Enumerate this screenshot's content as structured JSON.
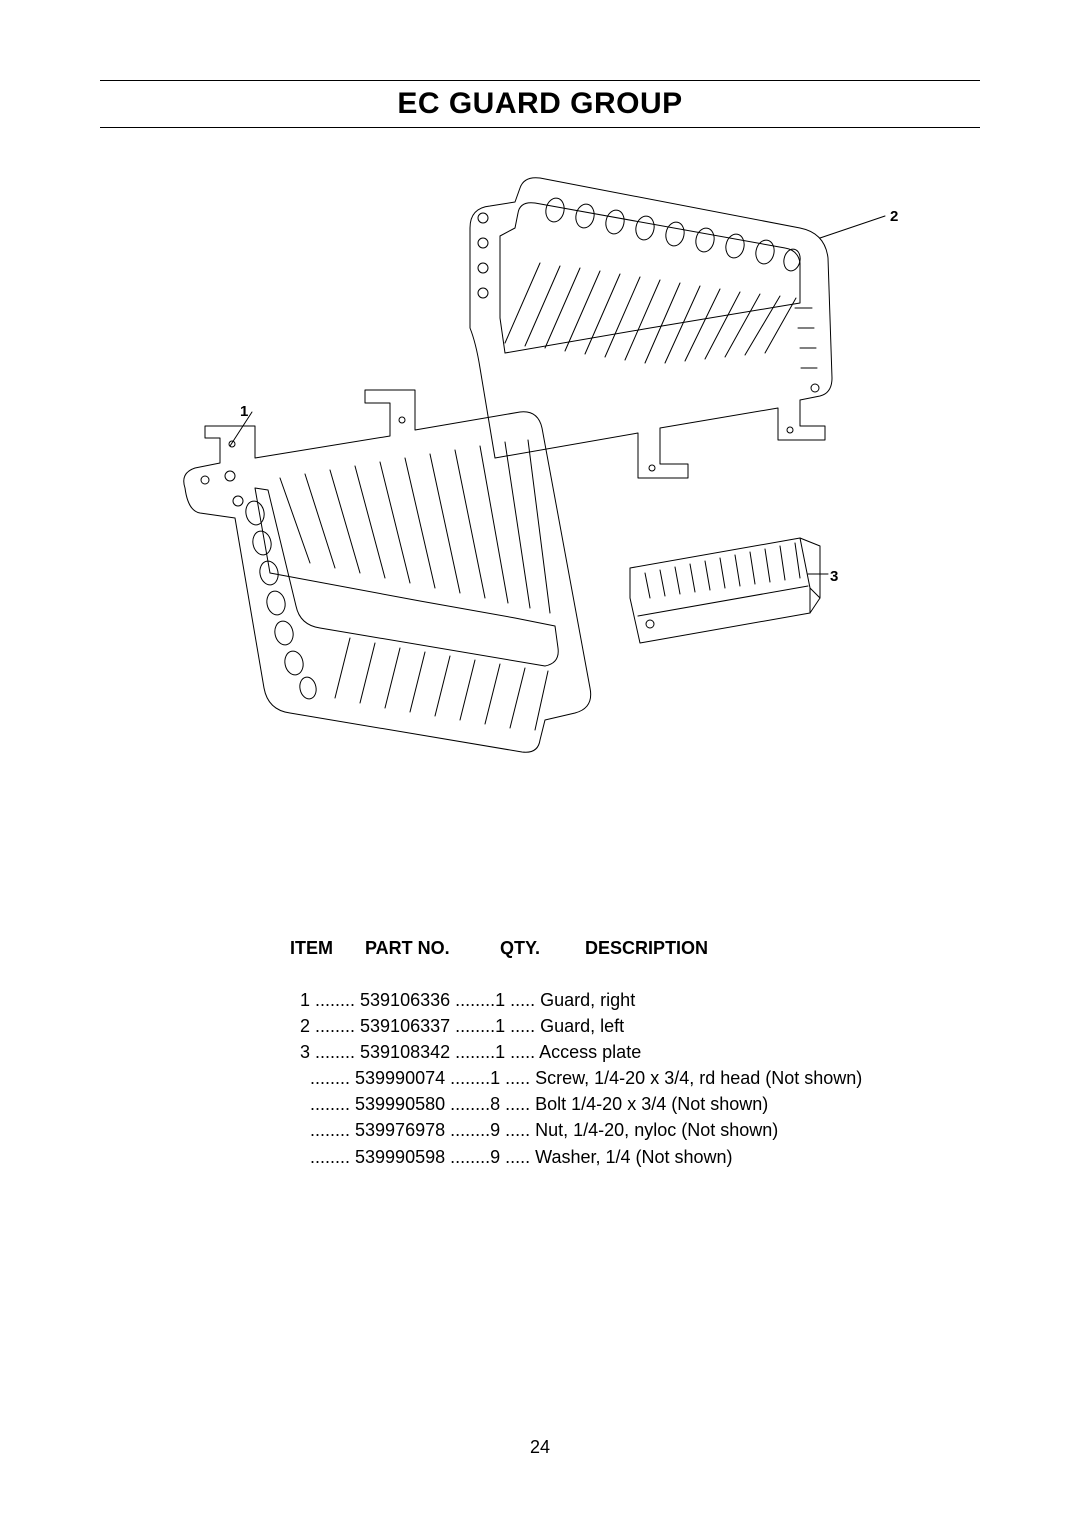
{
  "title": "EC GUARD GROUP",
  "page_number": "24",
  "callouts": {
    "c1": "1",
    "c2": "2",
    "c3": "3"
  },
  "table": {
    "headers": {
      "item": "ITEM",
      "part": "PART NO.",
      "qty": "QTY.",
      "desc": "DESCRIPTION"
    },
    "rows": [
      {
        "item": "1",
        "part": "539106336",
        "qty": "1",
        "desc": "Guard, right"
      },
      {
        "item": "2",
        "part": "539106337",
        "qty": "1",
        "desc": "Guard, left"
      },
      {
        "item": "3",
        "part": "539108342",
        "qty": "1",
        "desc": "Access plate"
      },
      {
        "item": "",
        "part": "539990074",
        "qty": "1",
        "desc": "Screw, 1/4-20 x 3/4, rd head (Not shown)"
      },
      {
        "item": "",
        "part": "539990580",
        "qty": "8",
        "desc": "Bolt 1/4-20 x 3/4 (Not shown)"
      },
      {
        "item": "",
        "part": "539976978",
        "qty": "9",
        "desc": "Nut, 1/4-20, nyloc (Not shown)"
      },
      {
        "item": "",
        "part": "539990598",
        "qty": "9",
        "desc": "Washer, 1/4 (Not shown)"
      }
    ]
  },
  "style": {
    "stroke": "#000000",
    "stroke_width": 1,
    "background": "#ffffff",
    "font_family": "Arial",
    "title_fontsize": 30,
    "body_fontsize": 18,
    "callout_fontsize": 15
  }
}
